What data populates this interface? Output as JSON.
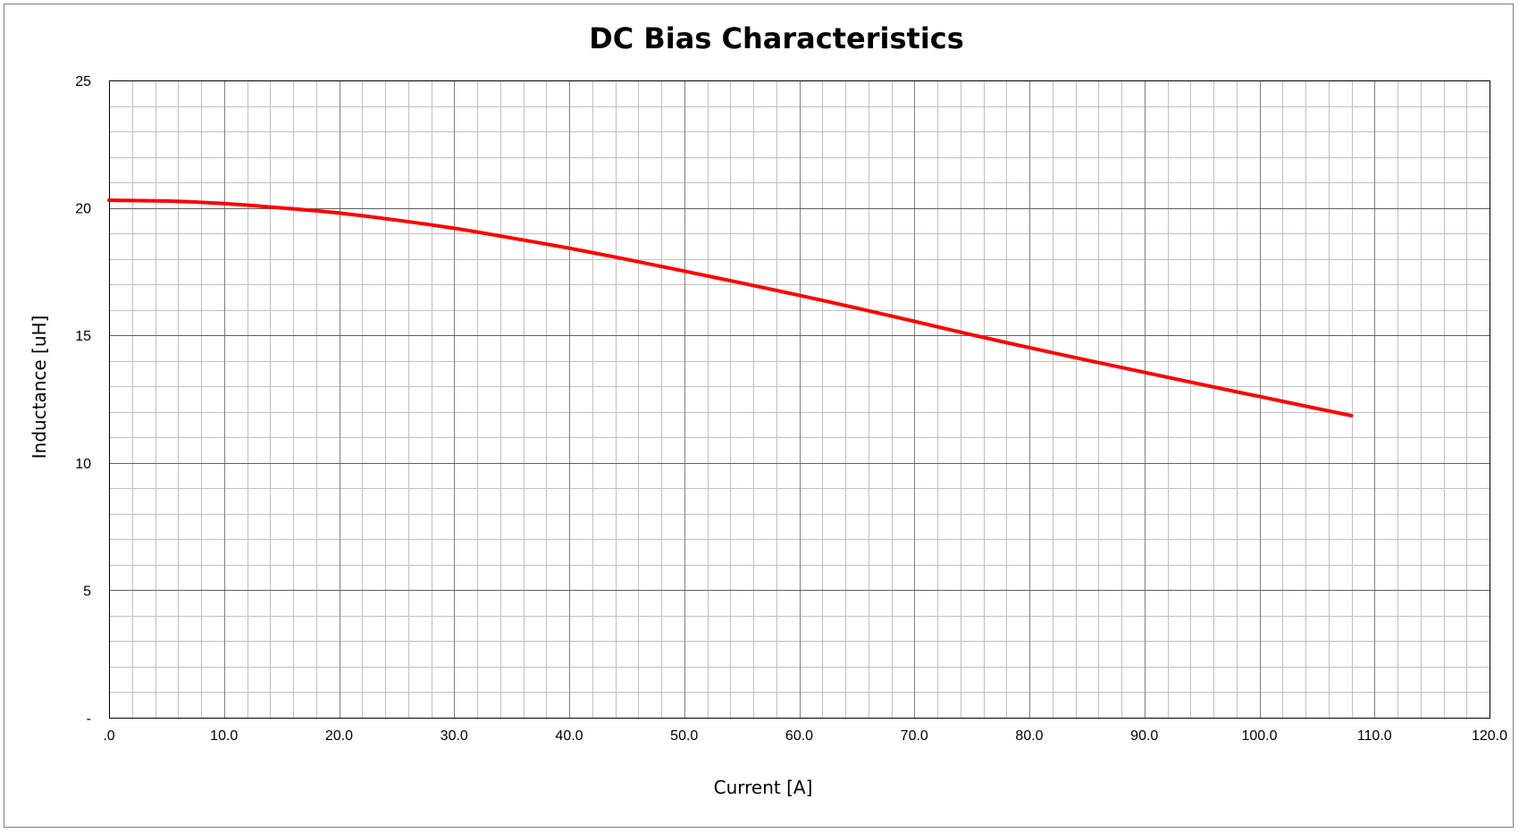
{
  "chart_data": {
    "type": "line",
    "title": "DC Bias Characteristics",
    "xlabel": "Current [A]",
    "ylabel": "Inductance [uH]",
    "xlim": [
      0,
      120
    ],
    "ylim": [
      0,
      25
    ],
    "x_major_step": 10,
    "x_minor_step": 2,
    "y_major_step": 5,
    "y_minor_step": 1,
    "grid": true,
    "x_tick_labels": [
      ".0",
      "10.0",
      "20.0",
      "30.0",
      "40.0",
      "50.0",
      "60.0",
      "70.0",
      "80.0",
      "90.0",
      "100.0",
      "110.0",
      "120.0"
    ],
    "y_tick_labels": [
      "-",
      "5",
      "10",
      "15",
      "20",
      "25"
    ],
    "series": [
      {
        "color": "#ff0000",
        "x": [
          0,
          5,
          10,
          15,
          20,
          25,
          30,
          35,
          40,
          45,
          50,
          55,
          60,
          65,
          70,
          75,
          80,
          85,
          90,
          95,
          100,
          105,
          108
        ],
        "y": [
          20.3,
          20.27,
          20.17,
          20.0,
          19.8,
          19.52,
          19.2,
          18.82,
          18.42,
          17.98,
          17.52,
          17.05,
          16.57,
          16.07,
          15.55,
          15.02,
          14.52,
          14.03,
          13.55,
          13.07,
          12.6,
          12.13,
          11.85
        ]
      }
    ]
  }
}
